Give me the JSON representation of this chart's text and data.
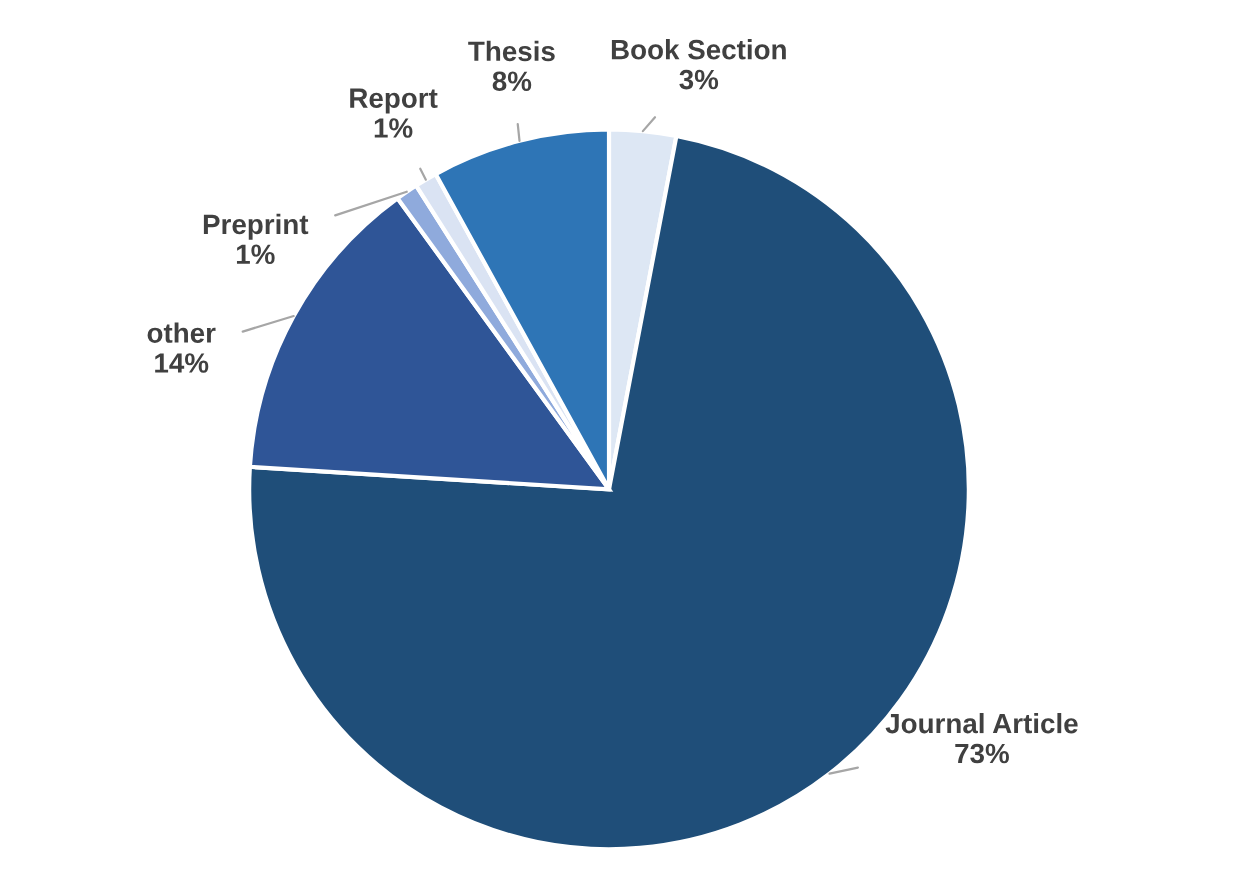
{
  "chart_data": {
    "type": "pie",
    "categories": [
      "Book Section",
      "Journal Article",
      "other",
      "Preprint",
      "Report",
      "Thesis"
    ],
    "values": [
      3,
      73,
      14,
      1,
      1,
      8
    ],
    "value_labels": [
      "3%",
      "73%",
      "14%",
      "1%",
      "1%",
      "8%"
    ],
    "colors": [
      "#dde7f4",
      "#1f4e79",
      "#2f5597",
      "#8faadc",
      "#dae3f3",
      "#2e75b6"
    ]
  }
}
